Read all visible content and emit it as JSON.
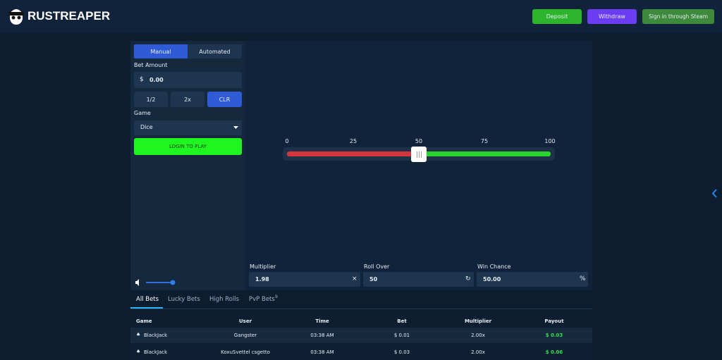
{
  "header": {
    "logo": "RUSTREAPER",
    "buttons": [
      "Deposit",
      "Withdraw",
      "Sign in through Steam"
    ]
  },
  "bet_panel": {
    "tabs": [
      "Manual",
      "Automated"
    ],
    "bet_amount_label": "Bet Amount",
    "currency": "$",
    "bet_amount": "0.00",
    "quick_buttons": [
      "1/2",
      "2x",
      "CLR"
    ],
    "game_label": "Game",
    "game": "Dice",
    "action": "LOGIN TO PLAY"
  },
  "dice": {
    "ticks": [
      "0",
      "25",
      "50",
      "75",
      "100"
    ],
    "fields": [
      {
        "label": "Multiplier",
        "value": "1.98",
        "icon": "×"
      },
      {
        "label": "Roll Over",
        "value": "50",
        "icon": "↻"
      },
      {
        "label": "Win Chance",
        "value": "50.00",
        "icon": "%"
      }
    ]
  },
  "bets": {
    "tabs": [
      "All Bets",
      "Lucky Bets",
      "High Rolls",
      "PvP Bets"
    ],
    "pvp_count": "9",
    "table": {
      "columns": [
        "Game",
        "User",
        "Time",
        "Bet",
        "Multiplier",
        "Payout"
      ],
      "rows": [
        [
          "BlackJack",
          "Gangster",
          "03:38 AM",
          "$ 0.01",
          "2.00x",
          "$ 0.03"
        ],
        [
          "BlackJack",
          "KoxuSvettel csgetto",
          "03:38 AM",
          "$ 0.03",
          "2.00x",
          "$ 0.06"
        ]
      ]
    }
  }
}
